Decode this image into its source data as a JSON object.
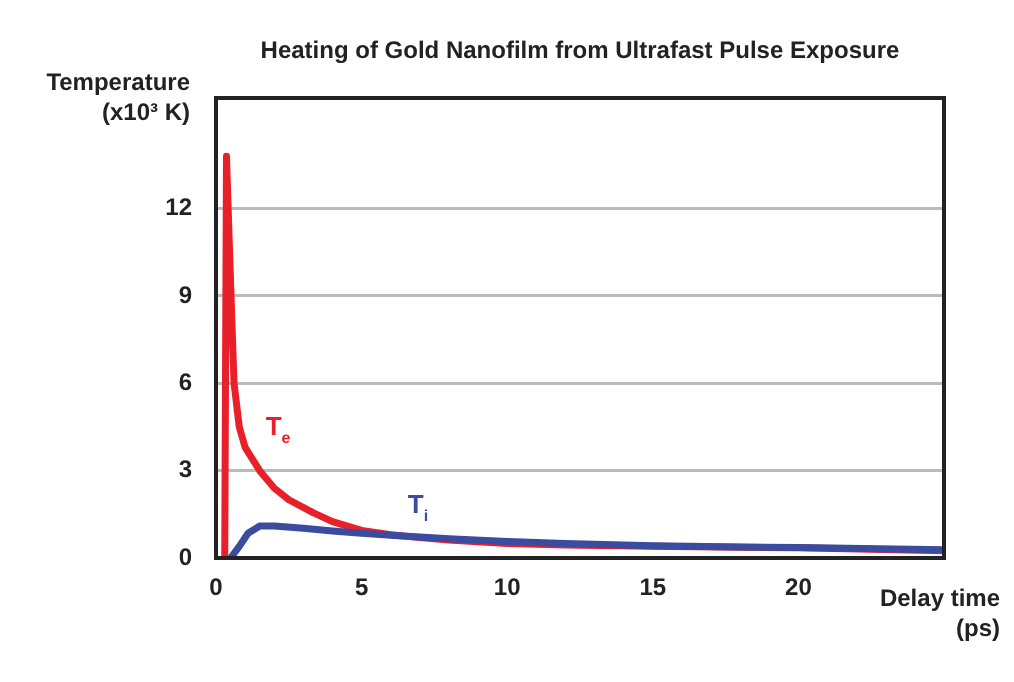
{
  "chart_data": {
    "type": "line",
    "title": "Heating of Gold Nanofilm from Ultrafast Pulse Exposure",
    "xlabel": "Delay time (ps)",
    "ylabel": "Temperature (x10³ K)",
    "xlim": [
      0,
      25
    ],
    "xticks": [
      0,
      5,
      10,
      15,
      20
    ],
    "ylim": [
      0,
      15.8
    ],
    "yticks": [
      0,
      3,
      6,
      9,
      12
    ],
    "grid": "y",
    "legend": false,
    "marker": "none",
    "line_style": "solid",
    "series": [
      {
        "name": "T$_{e}$",
        "color": "#e8202a",
        "x": [
          0.3,
          0.36,
          0.45,
          0.55,
          0.62,
          0.8,
          1.0,
          1.5,
          2,
          2.5,
          3.35,
          4,
          5,
          6,
          7,
          8,
          10,
          12,
          15,
          18,
          20,
          25
        ],
        "values": [
          0,
          13.8,
          11,
          8,
          6,
          4.5,
          3.8,
          3.0,
          2.4,
          2.0,
          1.55,
          1.25,
          0.95,
          0.8,
          0.7,
          0.62,
          0.5,
          0.45,
          0.4,
          0.37,
          0.35,
          0.25
        ]
      },
      {
        "name": "T$_{i}$",
        "color": "#3a4ba0",
        "x": [
          0.5,
          0.8,
          1.1,
          1.5,
          2,
          3,
          4,
          5,
          6,
          7,
          8,
          10,
          12,
          15,
          18,
          20,
          25
        ],
        "values": [
          0,
          0.4,
          0.85,
          1.1,
          1.1,
          1.02,
          0.93,
          0.85,
          0.78,
          0.72,
          0.66,
          0.57,
          0.5,
          0.42,
          0.38,
          0.36,
          0.28
        ]
      }
    ]
  }
}
